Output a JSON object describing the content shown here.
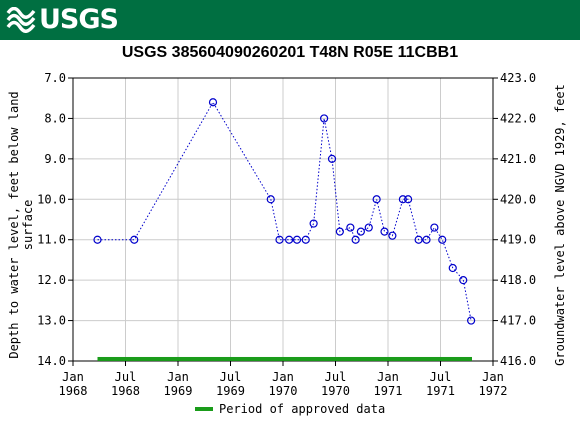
{
  "header": {
    "logo_text": "USGS"
  },
  "chart_data": {
    "type": "scatter",
    "title": "USGS 385604090260201 T48N R05E 11CBB1",
    "ylabel_left_line1": "Depth to water level, feet below land",
    "ylabel_left_line2": "surface",
    "ylabel_right": "Groundwater level above NGVD 1929, feet",
    "ylim_left": [
      14.0,
      7.0
    ],
    "ylim_right": [
      416.0,
      423.0
    ],
    "yticks_left": [
      "7.0",
      "8.0",
      "9.0",
      "10.0",
      "11.0",
      "12.0",
      "13.0",
      "14.0"
    ],
    "yticks_right": [
      "423.0",
      "422.0",
      "421.0",
      "420.0",
      "419.0",
      "418.0",
      "417.0",
      "416.0"
    ],
    "xticks": [
      {
        "line1": "Jan",
        "line2": "1968"
      },
      {
        "line1": "Jul",
        "line2": "1968"
      },
      {
        "line1": "Jan",
        "line2": "1969"
      },
      {
        "line1": "Jul",
        "line2": "1969"
      },
      {
        "line1": "Jan",
        "line2": "1970"
      },
      {
        "line1": "Jul",
        "line2": "1970"
      },
      {
        "line1": "Jan",
        "line2": "1971"
      },
      {
        "line1": "Jul",
        "line2": "1971"
      },
      {
        "line1": "Jan",
        "line2": "1972"
      }
    ],
    "x_range_months": [
      0,
      48
    ],
    "grid": true,
    "series": [
      {
        "marker": "circle",
        "line": "dotted",
        "color": "#0000cc",
        "points": [
          {
            "month": 2.8,
            "depth": 11.0
          },
          {
            "month": 7.0,
            "depth": 11.0
          },
          {
            "month": 16.0,
            "depth": 7.6
          },
          {
            "month": 22.6,
            "depth": 10.0
          },
          {
            "month": 23.6,
            "depth": 11.0
          },
          {
            "month": 24.7,
            "depth": 11.0
          },
          {
            "month": 25.6,
            "depth": 11.0
          },
          {
            "month": 26.6,
            "depth": 11.0
          },
          {
            "month": 27.5,
            "depth": 10.6
          },
          {
            "month": 28.7,
            "depth": 8.0
          },
          {
            "month": 29.6,
            "depth": 9.0
          },
          {
            "month": 30.5,
            "depth": 10.8
          },
          {
            "month": 31.7,
            "depth": 10.7
          },
          {
            "month": 32.3,
            "depth": 11.0
          },
          {
            "month": 32.9,
            "depth": 10.8
          },
          {
            "month": 33.8,
            "depth": 10.7
          },
          {
            "month": 34.7,
            "depth": 10.0
          },
          {
            "month": 35.6,
            "depth": 10.8
          },
          {
            "month": 36.5,
            "depth": 10.9
          },
          {
            "month": 37.7,
            "depth": 10.0
          },
          {
            "month": 38.3,
            "depth": 10.0
          },
          {
            "month": 39.5,
            "depth": 11.0
          },
          {
            "month": 40.4,
            "depth": 11.0
          },
          {
            "month": 41.3,
            "depth": 10.7
          },
          {
            "month": 42.2,
            "depth": 11.0
          },
          {
            "month": 43.4,
            "depth": 11.7
          },
          {
            "month": 44.6,
            "depth": 12.0
          },
          {
            "month": 45.5,
            "depth": 13.0
          }
        ]
      }
    ],
    "approved_period": {
      "start_month": 2.8,
      "end_month": 45.6,
      "depth": 13.95,
      "color": "#1a9c1a"
    },
    "legend": {
      "label": "Period of approved data",
      "color": "#1a9c1a",
      "position": "bottom-center"
    }
  }
}
